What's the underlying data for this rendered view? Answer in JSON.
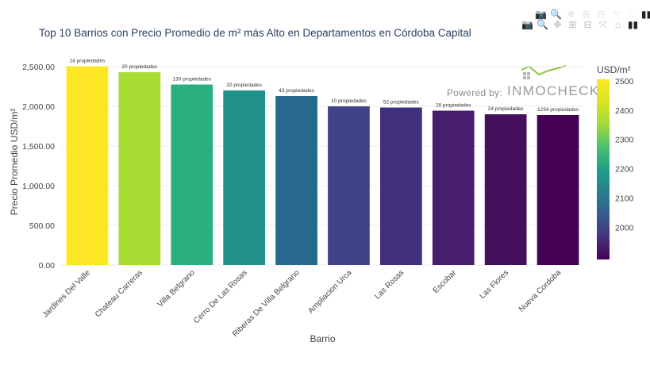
{
  "title": "Top 10 Barrios con Precio Promedio de m² más Alto en Departamentos en Córdoba Capital",
  "watermark": {
    "powered_by": "Powered by:",
    "brand": "INMOCHECK"
  },
  "modebar": [
    {
      "name": "camera-icon",
      "glyph": "📷"
    },
    {
      "name": "zoom-icon",
      "glyph": "🔍"
    },
    {
      "name": "pan-icon",
      "glyph": "✥"
    },
    {
      "name": "zoom-in-icon",
      "glyph": "⊞"
    },
    {
      "name": "zoom-out-icon",
      "glyph": "⊟"
    },
    {
      "name": "autoscale-icon",
      "glyph": "⤧"
    },
    {
      "name": "home-icon",
      "glyph": "⌂"
    },
    {
      "name": "plotly-logo-icon",
      "glyph": "▮▮"
    }
  ],
  "chart_data": {
    "type": "bar",
    "title": "Top 10 Barrios con Precio Promedio de m² más Alto en Departamentos en Córdoba Capital",
    "xlabel": "Barrio",
    "ylabel": "Precio Promedio USD/m²",
    "categories": [
      "Jardines Del Valle",
      "Chateau Carreras",
      "Villa Belgrano",
      "Cerro De Las Rosas",
      "Riberas De Villa Belgrano",
      "Ampliacion Urca",
      "Las Rosas",
      "Escobar",
      "Las Flores",
      "Nueva Cordoba"
    ],
    "values": [
      2505,
      2430,
      2275,
      2200,
      2130,
      2000,
      1985,
      1945,
      1900,
      1890
    ],
    "data_labels": [
      "14 propiedades",
      "20 propiedades",
      "130 propiedades",
      "20 propiedades",
      "43 propiedades",
      "10 propiedades",
      "52 propiedades",
      "28 propiedades",
      "24 propiedades",
      "1234 propiedades"
    ],
    "colors": [
      "#fde725",
      "#a8db34",
      "#2ab07f",
      "#21918c",
      "#27698e",
      "#404387",
      "#3f2f7d",
      "#471e6b",
      "#450f5c",
      "#440154"
    ],
    "ylim": [
      0,
      2600
    ],
    "yticks": [
      0,
      500,
      1000,
      1500,
      2000,
      2500
    ],
    "ytick_labels": [
      "0.00",
      "500.00",
      "1,000.00",
      "1,500.00",
      "2,000.00",
      "2,500.00"
    ],
    "grid": true,
    "colorbar": {
      "title": "USD/m²",
      "range": [
        1890,
        2505
      ],
      "ticks": [
        2000,
        2100,
        2200,
        2300,
        2400,
        2500
      ],
      "tick_labels": [
        "2000",
        "2100",
        "2200",
        "2300",
        "2400",
        "2500"
      ],
      "colorscale": "Viridis"
    }
  }
}
